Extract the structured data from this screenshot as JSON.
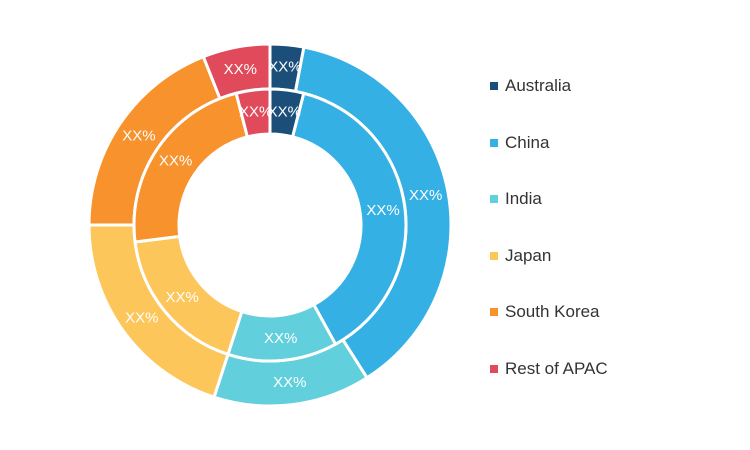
{
  "chart_data": {
    "type": "pie",
    "variant": "double-ring donut",
    "categories": [
      "Australia",
      "China",
      "India",
      "Japan",
      "South Korea",
      "Rest of APAC"
    ],
    "colors": [
      "#1b4f79",
      "#35b0e4",
      "#62cfdc",
      "#fdc65b",
      "#f7922d",
      "#e04a5b"
    ],
    "series": [
      {
        "ring": "outer",
        "values": [
          3,
          38,
          14,
          20,
          19,
          6
        ],
        "labels": [
          "XX%",
          "XX%",
          "XX%",
          "XX%",
          "XX%",
          "XX%"
        ]
      },
      {
        "ring": "inner",
        "values": [
          4,
          38,
          13,
          18,
          23,
          4
        ],
        "labels": [
          "XX%",
          "XX%",
          "XX%",
          "XX%",
          "XX%",
          "XX%"
        ]
      }
    ],
    "legend_position": "right"
  }
}
